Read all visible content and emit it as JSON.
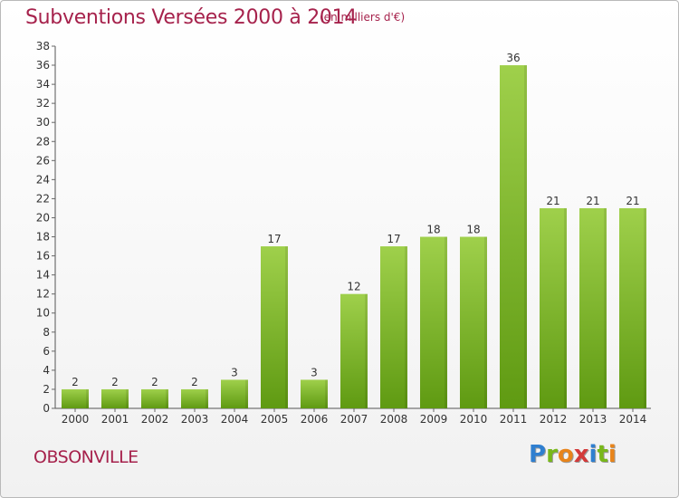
{
  "header": {
    "title": "Subventions Versées 2000 à 2014",
    "unit_note": "(en milliers d'€)"
  },
  "footer": {
    "commune": "OBSONVILLE",
    "logo_text": "Proxiti"
  },
  "colors": {
    "title": "#a6224c",
    "bar_top": "#9fd04b",
    "bar_bottom": "#5f9a12",
    "axis": "#555555",
    "grid_tick": "#666666"
  },
  "chart_data": {
    "type": "bar",
    "title": "Subventions Versées 2000 à 2014",
    "subtitle": "(en milliers d'€)",
    "categories": [
      "2000",
      "2001",
      "2002",
      "2003",
      "2004",
      "2005",
      "2006",
      "2007",
      "2008",
      "2009",
      "2010",
      "2011",
      "2012",
      "2013",
      "2014"
    ],
    "values": [
      2,
      2,
      2,
      2,
      3,
      17,
      3,
      12,
      17,
      18,
      18,
      36,
      21,
      21,
      21
    ],
    "ylim": [
      0,
      38
    ],
    "yticks": [
      0,
      2,
      4,
      6,
      8,
      10,
      12,
      14,
      16,
      18,
      20,
      22,
      24,
      26,
      28,
      30,
      32,
      34,
      36,
      38
    ],
    "xlabel": "",
    "ylabel": "",
    "grid": false,
    "legend": "none"
  }
}
